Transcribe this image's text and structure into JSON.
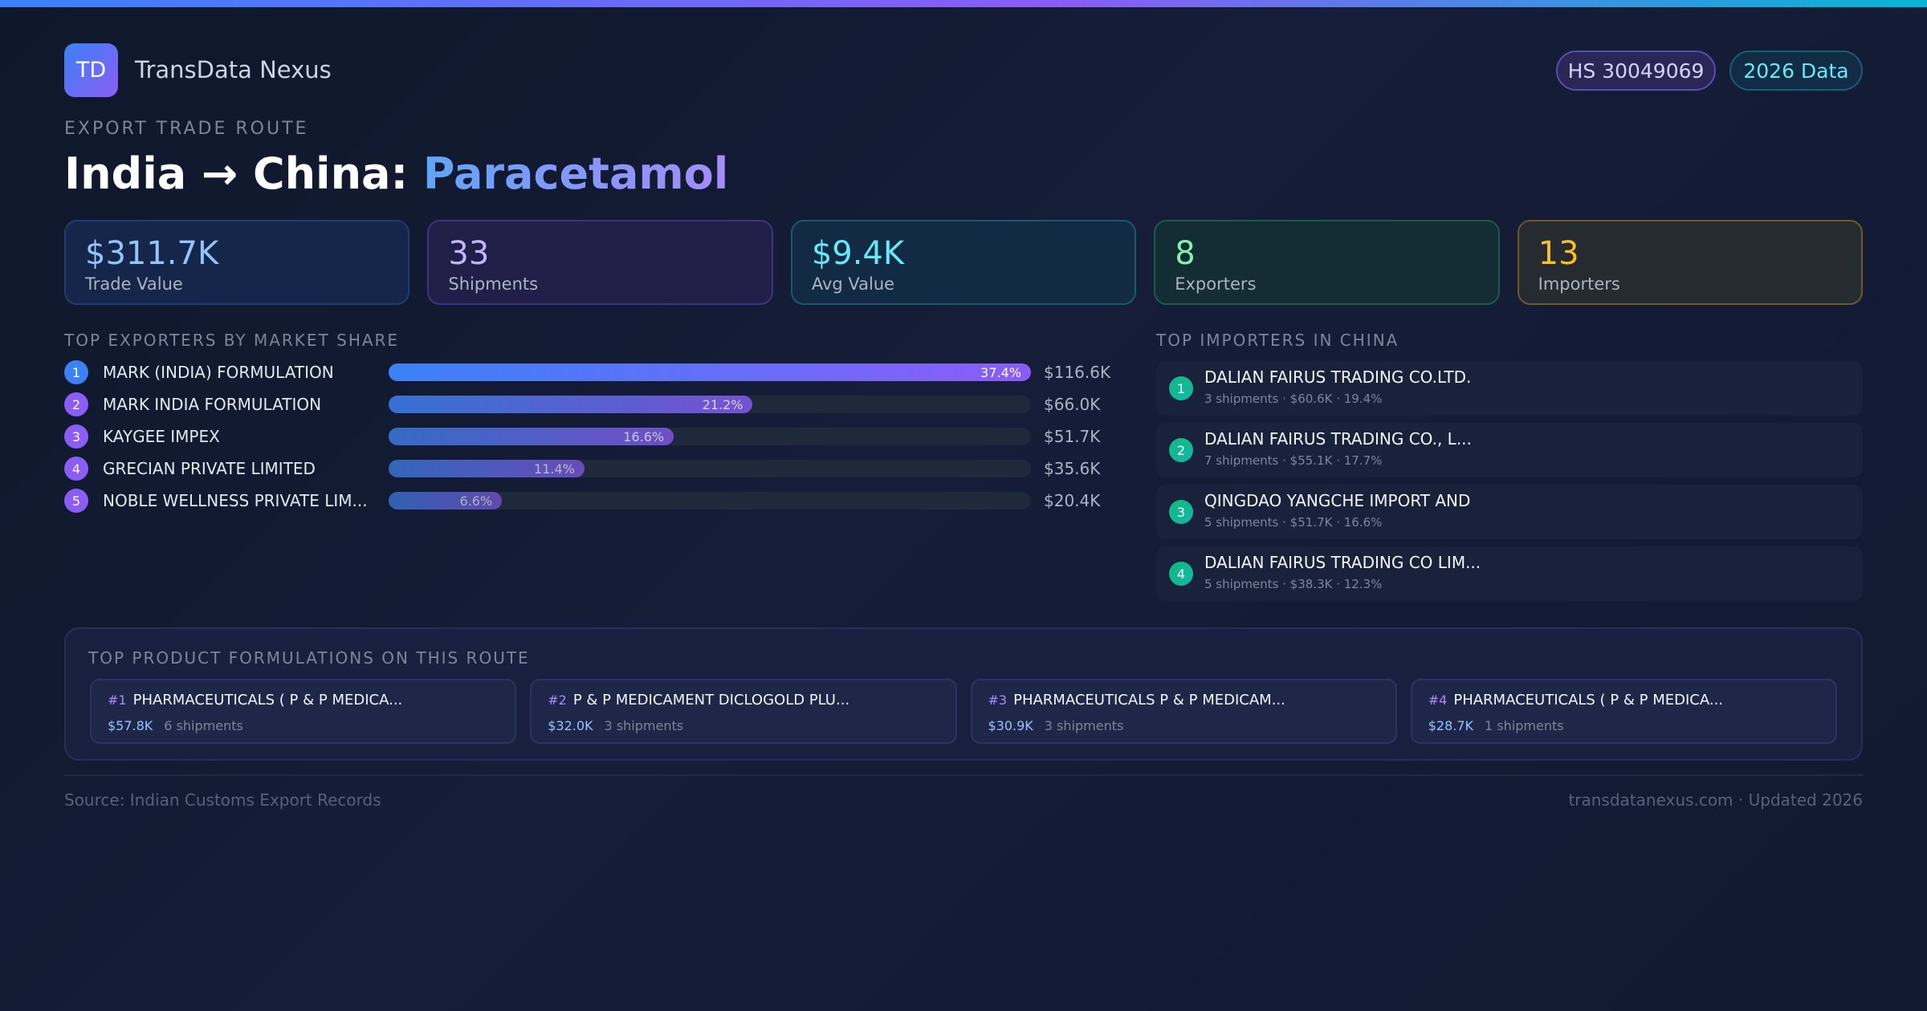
{
  "brand": {
    "logo_text": "TD",
    "name": "TransData Nexus"
  },
  "badges": {
    "hs": "HS 30049069",
    "year": "2026 Data"
  },
  "header": {
    "kicker": "EXPORT TRADE ROUTE",
    "title_route": "India → China: ",
    "title_product": "Paracetamol"
  },
  "stats": [
    {
      "value": "$311.7K",
      "label": "Trade Value"
    },
    {
      "value": "33",
      "label": "Shipments"
    },
    {
      "value": "$9.4K",
      "label": "Avg Value"
    },
    {
      "value": "8",
      "label": "Exporters"
    },
    {
      "value": "13",
      "label": "Importers"
    }
  ],
  "exporters": {
    "heading": "TOP EXPORTERS BY MARKET SHARE",
    "items": [
      {
        "rank": "1",
        "name": "MARK (INDIA) FORMULATION",
        "share_label": "37.4%",
        "share": 37.4,
        "value": "$116.6K",
        "color": "#3b82f6"
      },
      {
        "rank": "2",
        "name": "MARK INDIA FORMULATION",
        "share_label": "21.2%",
        "share": 21.2,
        "value": "$66.0K",
        "color": "#8b5cf6"
      },
      {
        "rank": "3",
        "name": "KAYGEE IMPEX",
        "share_label": "16.6%",
        "share": 16.6,
        "value": "$51.7K",
        "color": "#8b5cf6"
      },
      {
        "rank": "4",
        "name": "GRECIAN PRIVATE LIMITED",
        "share_label": "11.4%",
        "share": 11.4,
        "value": "$35.6K",
        "color": "#8b5cf6"
      },
      {
        "rank": "5",
        "name": "NOBLE WELLNESS PRIVATE LIM...",
        "share_label": "6.6%",
        "share": 6.6,
        "value": "$20.4K",
        "color": "#8b5cf6"
      }
    ]
  },
  "importers": {
    "heading": "TOP IMPORTERS IN CHINA",
    "items": [
      {
        "rank": "1",
        "name": "DALIAN FAIRUS TRADING CO.LTD.",
        "meta": "3 shipments · $60.6K · 19.4%"
      },
      {
        "rank": "2",
        "name": "DALIAN FAIRUS TRADING CO., L...",
        "meta": "7 shipments · $55.1K · 17.7%"
      },
      {
        "rank": "3",
        "name": "QINGDAO YANGCHE IMPORT AND",
        "meta": "5 shipments · $51.7K · 16.6%"
      },
      {
        "rank": "4",
        "name": "DALIAN FAIRUS TRADING CO LIM...",
        "meta": "5 shipments · $38.3K · 12.3%"
      }
    ]
  },
  "products": {
    "heading": "TOP PRODUCT FORMULATIONS ON THIS ROUTE",
    "items": [
      {
        "rank": "#1",
        "name": "PHARMACEUTICALS ( P & P MEDICA...",
        "value": "$57.8K",
        "shipments": "6 shipments"
      },
      {
        "rank": "#2",
        "name": "P & P MEDICAMENT DICLOGOLD PLU...",
        "value": "$32.0K",
        "shipments": "3 shipments"
      },
      {
        "rank": "#3",
        "name": "PHARMACEUTICALS P & P MEDICAM...",
        "value": "$30.9K",
        "shipments": "3 shipments"
      },
      {
        "rank": "#4",
        "name": "PHARMACEUTICALS ( P & P MEDICA...",
        "value": "$28.7K",
        "shipments": "1 shipments"
      }
    ]
  },
  "footer": {
    "source": "Source: Indian Customs Export Records",
    "site": "transdatanexus.com · Updated 2026"
  }
}
